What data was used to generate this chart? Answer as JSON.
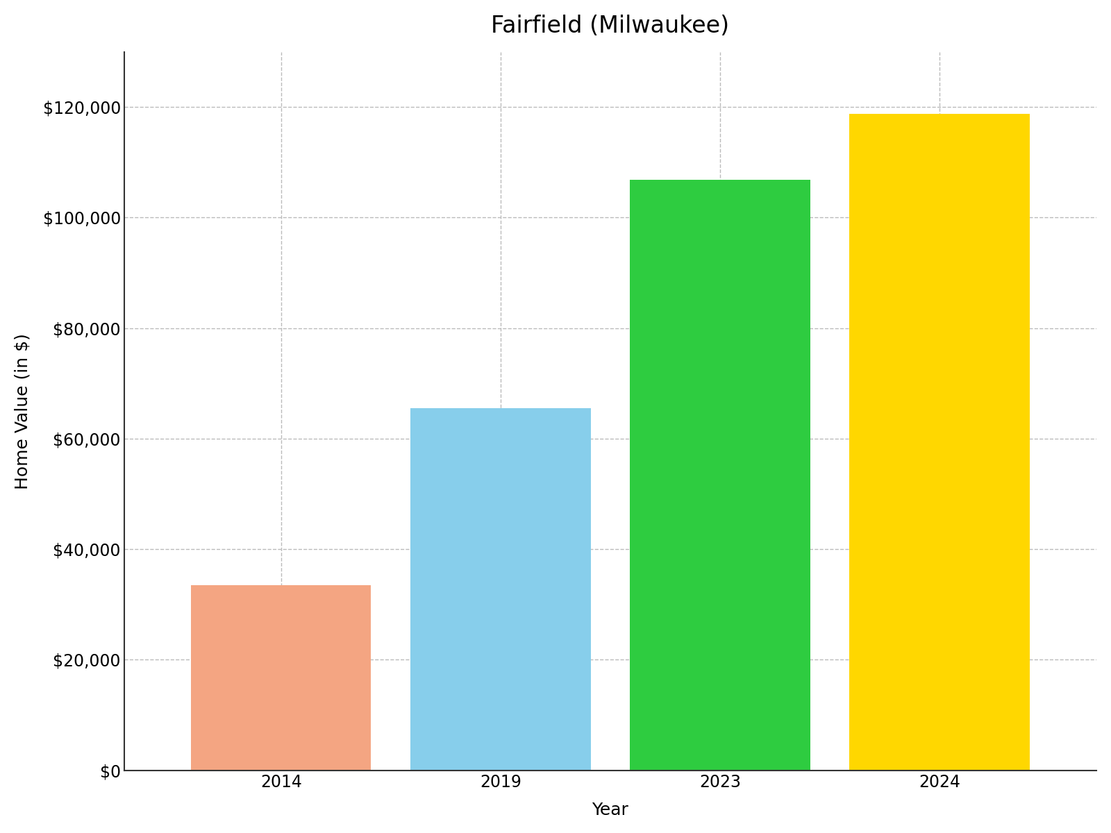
{
  "title": "Fairfield (Milwaukee)",
  "xlabel": "Year",
  "ylabel": "Home Value (in $)",
  "categories": [
    "2014",
    "2019",
    "2023",
    "2024"
  ],
  "values": [
    33500,
    65500,
    106800,
    118800
  ],
  "bar_colors": [
    "#F4A582",
    "#87CEEB",
    "#2ECC40",
    "#FFD700"
  ],
  "ylim": [
    0,
    130000
  ],
  "yticks": [
    0,
    20000,
    40000,
    60000,
    80000,
    100000,
    120000
  ],
  "background_color": "#ffffff",
  "grid_color": "#bbbbbb",
  "title_fontsize": 24,
  "label_fontsize": 18,
  "tick_fontsize": 17,
  "bar_width": 0.82
}
